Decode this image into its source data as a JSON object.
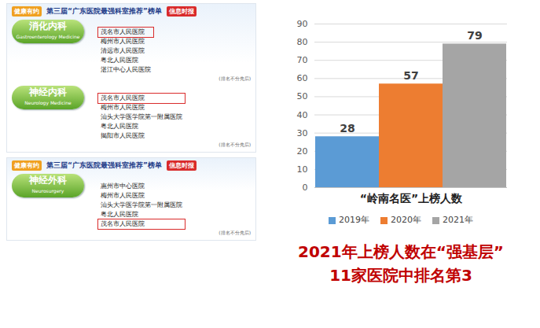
{
  "chart_data": {
    "type": "bar",
    "categories": [
      "“岭南名医”上榜人数"
    ],
    "series": [
      {
        "name": "2019年",
        "color": "#5b9bd5",
        "values": [
          28
        ]
      },
      {
        "name": "2020年",
        "color": "#ed7d31",
        "values": [
          57
        ]
      },
      {
        "name": "2021年",
        "color": "#a5a5a5",
        "values": [
          79
        ]
      }
    ],
    "ylim": [
      0,
      90
    ],
    "yticks": [
      0,
      10,
      20,
      30,
      40,
      50,
      60,
      70,
      80,
      90
    ],
    "grid": true,
    "legend": "bottom",
    "data_labels": true
  },
  "caption": [
    "2021年上榜人数在“强基层”",
    "11家医院中排名第3"
  ],
  "panels": [
    {
      "logo": "健康有约",
      "header": "第三届“广东医院最强科室推荐”榜单",
      "badge": "信息时报",
      "sections": [
        {
          "title": "消化内科",
          "subtitle": "Gastroenterology Medicine",
          "note": "(排名不分先后)",
          "items": [
            {
              "name": "茂名市人民医院",
              "boxed": true
            },
            {
              "name": "梅州市人民医院",
              "boxed": false
            },
            {
              "name": "清远市人民医院",
              "boxed": false
            },
            {
              "name": "粤北人民医院",
              "boxed": false
            },
            {
              "name": "湛江中心人民医院",
              "boxed": false
            }
          ]
        },
        {
          "title": "神经内科",
          "subtitle": "Neurology Medicine",
          "note": "(排名不分先后)",
          "items": [
            {
              "name": "茂名市人民医院",
              "boxed": true
            },
            {
              "name": "梅州市人民医院",
              "boxed": false
            },
            {
              "name": "汕头大学医学院第一附属医院",
              "boxed": false
            },
            {
              "name": "粤北人民医院",
              "boxed": false
            },
            {
              "name": "揭阳市人民医院",
              "boxed": false
            }
          ]
        }
      ]
    },
    {
      "logo": "健康有约",
      "header": "第三届“广东医院最强科室推荐”榜单",
      "badge": "信息时报",
      "sections": [
        {
          "title": "神经外科",
          "subtitle": "Neurosurgery",
          "note": "(排名不分先后)",
          "items": [
            {
              "name": "惠州市中心医院",
              "boxed": false
            },
            {
              "name": "梅州市人民医院",
              "boxed": false
            },
            {
              "name": "汕头大学医学院第一附属医院",
              "boxed": false
            },
            {
              "name": "粤北人民医院",
              "boxed": false
            },
            {
              "name": "茂名市人民医院",
              "boxed": true
            }
          ]
        }
      ]
    }
  ]
}
